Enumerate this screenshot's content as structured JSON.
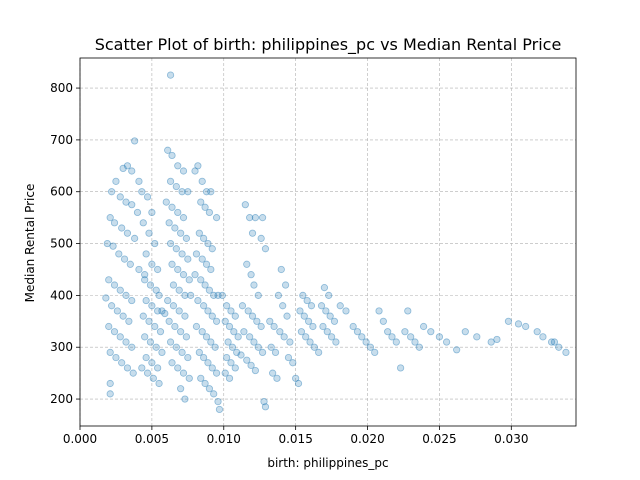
{
  "chart_data": {
    "type": "scatter",
    "title": "Scatter Plot of birth: philippines_pc vs Median Rental Price",
    "xlabel": "birth: philippines_pc",
    "ylabel": "Median Rental Price",
    "xlim": [
      0.0,
      0.0345
    ],
    "ylim": [
      148,
      858
    ],
    "x_ticks": [
      0.0,
      0.005,
      0.01,
      0.015,
      0.02,
      0.025,
      0.03
    ],
    "x_tick_labels": [
      "0.000",
      "0.005",
      "0.010",
      "0.015",
      "0.020",
      "0.025",
      "0.030"
    ],
    "y_ticks": [
      200,
      300,
      400,
      500,
      600,
      700,
      800
    ],
    "y_tick_labels": [
      "200",
      "300",
      "400",
      "500",
      "600",
      "700",
      "800"
    ],
    "grid": true,
    "color": "#1f77b4",
    "point_opacity": 0.25,
    "points": [
      [
        0.0063,
        825
      ],
      [
        0.0038,
        698
      ],
      [
        0.0033,
        650
      ],
      [
        0.0036,
        640
      ],
      [
        0.003,
        645
      ],
      [
        0.0041,
        620
      ],
      [
        0.0025,
        620
      ],
      [
        0.0022,
        600
      ],
      [
        0.0028,
        590
      ],
      [
        0.0032,
        580
      ],
      [
        0.0036,
        575
      ],
      [
        0.004,
        560
      ],
      [
        0.0021,
        550
      ],
      [
        0.0024,
        540
      ],
      [
        0.0029,
        530
      ],
      [
        0.0033,
        520
      ],
      [
        0.0038,
        510
      ],
      [
        0.0019,
        500
      ],
      [
        0.0023,
        495
      ],
      [
        0.0027,
        480
      ],
      [
        0.0031,
        470
      ],
      [
        0.0035,
        460
      ],
      [
        0.0041,
        450
      ],
      [
        0.0045,
        440
      ],
      [
        0.002,
        430
      ],
      [
        0.0024,
        420
      ],
      [
        0.0028,
        410
      ],
      [
        0.0032,
        400
      ],
      [
        0.0036,
        390
      ],
      [
        0.0018,
        395
      ],
      [
        0.0022,
        380
      ],
      [
        0.0026,
        370
      ],
      [
        0.003,
        360
      ],
      [
        0.0034,
        350
      ],
      [
        0.002,
        340
      ],
      [
        0.0024,
        330
      ],
      [
        0.0028,
        320
      ],
      [
        0.0032,
        310
      ],
      [
        0.0036,
        300
      ],
      [
        0.0021,
        290
      ],
      [
        0.0025,
        280
      ],
      [
        0.0029,
        270
      ],
      [
        0.0033,
        260
      ],
      [
        0.0037,
        250
      ],
      [
        0.0021,
        230
      ],
      [
        0.0021,
        210
      ],
      [
        0.0043,
        600
      ],
      [
        0.0047,
        590
      ],
      [
        0.005,
        560
      ],
      [
        0.0044,
        540
      ],
      [
        0.0048,
        520
      ],
      [
        0.0052,
        500
      ],
      [
        0.0046,
        480
      ],
      [
        0.005,
        460
      ],
      [
        0.0054,
        450
      ],
      [
        0.0045,
        430
      ],
      [
        0.0049,
        420
      ],
      [
        0.0053,
        410
      ],
      [
        0.0055,
        400
      ],
      [
        0.0046,
        390
      ],
      [
        0.005,
        380
      ],
      [
        0.0054,
        370
      ],
      [
        0.0057,
        370
      ],
      [
        0.0059,
        365
      ],
      [
        0.0044,
        360
      ],
      [
        0.0048,
        350
      ],
      [
        0.0052,
        340
      ],
      [
        0.0056,
        330
      ],
      [
        0.0045,
        320
      ],
      [
        0.0049,
        310
      ],
      [
        0.0053,
        300
      ],
      [
        0.0057,
        290
      ],
      [
        0.0046,
        280
      ],
      [
        0.005,
        270
      ],
      [
        0.0054,
        260
      ],
      [
        0.0043,
        260
      ],
      [
        0.0047,
        250
      ],
      [
        0.0051,
        240
      ],
      [
        0.0055,
        230
      ],
      [
        0.0061,
        680
      ],
      [
        0.0064,
        670
      ],
      [
        0.0068,
        650
      ],
      [
        0.0072,
        640
      ],
      [
        0.0063,
        620
      ],
      [
        0.0067,
        610
      ],
      [
        0.0071,
        600
      ],
      [
        0.0075,
        600
      ],
      [
        0.006,
        580
      ],
      [
        0.0064,
        570
      ],
      [
        0.0068,
        560
      ],
      [
        0.0072,
        550
      ],
      [
        0.0062,
        540
      ],
      [
        0.0066,
        530
      ],
      [
        0.007,
        520
      ],
      [
        0.0074,
        510
      ],
      [
        0.0063,
        500
      ],
      [
        0.0067,
        490
      ],
      [
        0.0071,
        480
      ],
      [
        0.0075,
        470
      ],
      [
        0.0064,
        460
      ],
      [
        0.0068,
        450
      ],
      [
        0.0072,
        440
      ],
      [
        0.0076,
        430
      ],
      [
        0.0065,
        420
      ],
      [
        0.0069,
        410
      ],
      [
        0.0073,
        400
      ],
      [
        0.0077,
        400
      ],
      [
        0.0061,
        390
      ],
      [
        0.0065,
        380
      ],
      [
        0.0069,
        370
      ],
      [
        0.0073,
        360
      ],
      [
        0.0062,
        350
      ],
      [
        0.0066,
        340
      ],
      [
        0.007,
        330
      ],
      [
        0.0074,
        320
      ],
      [
        0.0063,
        310
      ],
      [
        0.0067,
        300
      ],
      [
        0.0071,
        290
      ],
      [
        0.0075,
        280
      ],
      [
        0.0064,
        270
      ],
      [
        0.0068,
        260
      ],
      [
        0.0072,
        250
      ],
      [
        0.0076,
        240
      ],
      [
        0.007,
        220
      ],
      [
        0.0073,
        200
      ],
      [
        0.0082,
        650
      ],
      [
        0.008,
        640
      ],
      [
        0.0085,
        620
      ],
      [
        0.0088,
        600
      ],
      [
        0.0091,
        600
      ],
      [
        0.0084,
        580
      ],
      [
        0.0087,
        570
      ],
      [
        0.009,
        560
      ],
      [
        0.0095,
        550
      ],
      [
        0.0083,
        520
      ],
      [
        0.0086,
        510
      ],
      [
        0.0089,
        500
      ],
      [
        0.0092,
        490
      ],
      [
        0.0081,
        480
      ],
      [
        0.0085,
        470
      ],
      [
        0.0088,
        460
      ],
      [
        0.0091,
        450
      ],
      [
        0.008,
        440
      ],
      [
        0.0084,
        430
      ],
      [
        0.0087,
        420
      ],
      [
        0.009,
        410
      ],
      [
        0.0093,
        400
      ],
      [
        0.0096,
        400
      ],
      [
        0.0099,
        400
      ],
      [
        0.0082,
        390
      ],
      [
        0.0086,
        380
      ],
      [
        0.0089,
        370
      ],
      [
        0.0092,
        360
      ],
      [
        0.0095,
        350
      ],
      [
        0.0081,
        340
      ],
      [
        0.0085,
        330
      ],
      [
        0.0088,
        320
      ],
      [
        0.0091,
        310
      ],
      [
        0.0094,
        300
      ],
      [
        0.0083,
        290
      ],
      [
        0.0086,
        280
      ],
      [
        0.0089,
        270
      ],
      [
        0.0092,
        260
      ],
      [
        0.0095,
        250
      ],
      [
        0.0084,
        240
      ],
      [
        0.0087,
        230
      ],
      [
        0.009,
        220
      ],
      [
        0.0093,
        210
      ],
      [
        0.0096,
        195
      ],
      [
        0.0097,
        180
      ],
      [
        0.0102,
        380
      ],
      [
        0.0105,
        370
      ],
      [
        0.0108,
        360
      ],
      [
        0.0101,
        350
      ],
      [
        0.0104,
        340
      ],
      [
        0.0107,
        330
      ],
      [
        0.011,
        320
      ],
      [
        0.0103,
        310
      ],
      [
        0.0106,
        300
      ],
      [
        0.0109,
        290
      ],
      [
        0.0102,
        280
      ],
      [
        0.0105,
        270
      ],
      [
        0.0108,
        260
      ],
      [
        0.0101,
        250
      ],
      [
        0.0104,
        240
      ],
      [
        0.0115,
        575
      ],
      [
        0.0118,
        550
      ],
      [
        0.0122,
        550
      ],
      [
        0.0127,
        550
      ],
      [
        0.012,
        520
      ],
      [
        0.0126,
        510
      ],
      [
        0.0129,
        490
      ],
      [
        0.0116,
        460
      ],
      [
        0.0119,
        440
      ],
      [
        0.0121,
        420
      ],
      [
        0.0124,
        400
      ],
      [
        0.0113,
        380
      ],
      [
        0.0117,
        370
      ],
      [
        0.012,
        360
      ],
      [
        0.0123,
        350
      ],
      [
        0.0126,
        340
      ],
      [
        0.0114,
        330
      ],
      [
        0.0118,
        320
      ],
      [
        0.0121,
        310
      ],
      [
        0.0124,
        300
      ],
      [
        0.0127,
        290
      ],
      [
        0.0112,
        285
      ],
      [
        0.0116,
        275
      ],
      [
        0.0119,
        265
      ],
      [
        0.0122,
        255
      ],
      [
        0.0128,
        195
      ],
      [
        0.0129,
        185
      ],
      [
        0.0134,
        250
      ],
      [
        0.0137,
        240
      ],
      [
        0.014,
        450
      ],
      [
        0.0143,
        420
      ],
      [
        0.0138,
        400
      ],
      [
        0.0141,
        380
      ],
      [
        0.0144,
        360
      ],
      [
        0.0132,
        350
      ],
      [
        0.0135,
        340
      ],
      [
        0.0139,
        330
      ],
      [
        0.0142,
        320
      ],
      [
        0.0146,
        310
      ],
      [
        0.0133,
        300
      ],
      [
        0.0136,
        290
      ],
      [
        0.0145,
        280
      ],
      [
        0.0148,
        270
      ],
      [
        0.015,
        240
      ],
      [
        0.0152,
        230
      ],
      [
        0.0155,
        400
      ],
      [
        0.0158,
        390
      ],
      [
        0.0161,
        380
      ],
      [
        0.0153,
        370
      ],
      [
        0.0156,
        360
      ],
      [
        0.0159,
        350
      ],
      [
        0.0162,
        340
      ],
      [
        0.0154,
        330
      ],
      [
        0.0157,
        320
      ],
      [
        0.016,
        310
      ],
      [
        0.0163,
        300
      ],
      [
        0.0166,
        290
      ],
      [
        0.017,
        415
      ],
      [
        0.0173,
        400
      ],
      [
        0.0168,
        380
      ],
      [
        0.0171,
        370
      ],
      [
        0.0174,
        360
      ],
      [
        0.0177,
        350
      ],
      [
        0.0169,
        340
      ],
      [
        0.0172,
        330
      ],
      [
        0.0175,
        320
      ],
      [
        0.0178,
        310
      ],
      [
        0.0181,
        380
      ],
      [
        0.0185,
        370
      ],
      [
        0.019,
        340
      ],
      [
        0.0193,
        330
      ],
      [
        0.0196,
        320
      ],
      [
        0.0199,
        310
      ],
      [
        0.0202,
        300
      ],
      [
        0.0205,
        290
      ],
      [
        0.0208,
        370
      ],
      [
        0.0211,
        350
      ],
      [
        0.0214,
        330
      ],
      [
        0.0217,
        320
      ],
      [
        0.022,
        310
      ],
      [
        0.0223,
        260
      ],
      [
        0.0228,
        370
      ],
      [
        0.0226,
        330
      ],
      [
        0.023,
        320
      ],
      [
        0.0233,
        310
      ],
      [
        0.0236,
        300
      ],
      [
        0.0239,
        340
      ],
      [
        0.0244,
        330
      ],
      [
        0.025,
        320
      ],
      [
        0.0255,
        310
      ],
      [
        0.0262,
        295
      ],
      [
        0.0268,
        330
      ],
      [
        0.0276,
        320
      ],
      [
        0.0286,
        310
      ],
      [
        0.029,
        315
      ],
      [
        0.0298,
        350
      ],
      [
        0.0305,
        345
      ],
      [
        0.031,
        340
      ],
      [
        0.0318,
        330
      ],
      [
        0.0322,
        320
      ],
      [
        0.0328,
        310
      ],
      [
        0.0333,
        300
      ],
      [
        0.0338,
        290
      ],
      [
        0.033,
        310
      ]
    ]
  }
}
